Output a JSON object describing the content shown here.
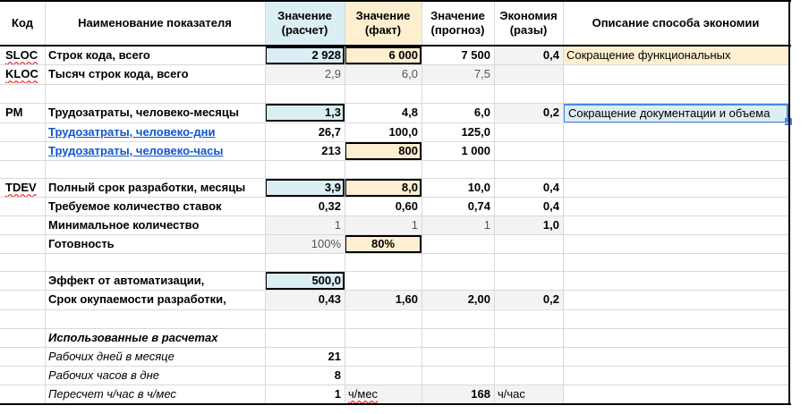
{
  "header": {
    "code": "Код",
    "name": "Наименование показателя",
    "calc": "Значение (расчет)",
    "fact": "Значение (факт)",
    "forecast": "Значение (прогноз)",
    "economy": "Экономия (разы)",
    "desc": "Описание способа экономии"
  },
  "rows": {
    "sloc": {
      "code": "SLOC",
      "name": "Строк кода, всего",
      "calc": "2 928",
      "fact": "6 000",
      "forecast": "7 500",
      "economy": "0,4",
      "desc": "Сокращение функциональных"
    },
    "kloc": {
      "code": "KLOC",
      "name": "Тысяч строк кода, всего",
      "calc": "2,9",
      "fact": "6,0",
      "forecast": "7,5"
    },
    "pm": {
      "code": "PM",
      "name": "Трудозатраты, человеко-месяцы",
      "calc": "1,3",
      "fact": "4,8",
      "forecast": "6,0",
      "economy": "0,2",
      "desc": "Сокращение документации и объема"
    },
    "days": {
      "name": "Трудозатраты, человеко-дни",
      "calc": "26,7",
      "fact": "100,0",
      "forecast": "125,0"
    },
    "hours": {
      "name": "Трудозатраты, человеко-часы",
      "calc": "213",
      "fact": "800",
      "forecast": "1 000"
    },
    "tdev": {
      "code": "TDEV",
      "name": "Полный срок разработки, месяцы",
      "calc": "3,9",
      "fact": "8,0",
      "forecast": "10,0",
      "economy": "0,4"
    },
    "staff": {
      "name": "Требуемое количество ставок",
      "calc": "0,32",
      "fact": "0,60",
      "forecast": "0,74",
      "economy": "0,4"
    },
    "minq": {
      "name": "Минимальное количество",
      "calc": "1",
      "fact": "1",
      "forecast": "1",
      "economy": "1,0"
    },
    "ready": {
      "name": "Готовность",
      "calc": "100%",
      "fact": "80%"
    },
    "effect": {
      "name": "Эффект от автоматизации,",
      "calc": "500,0"
    },
    "payback": {
      "name": "Срок окупаемости разработки,",
      "calc": "0,43",
      "fact": "1,60",
      "forecast": "2,00",
      "economy": "0,2"
    },
    "used": {
      "name": "Использованные в расчетах"
    },
    "wdays": {
      "name": "Рабочих дней в месяце",
      "calc": "21"
    },
    "whours": {
      "name": "Рабочих часов в дне",
      "calc": "8"
    },
    "conv": {
      "name": "Пересчет ч/час в ч/мес",
      "calc": "1",
      "fact": "ч/мес",
      "forecast": "168",
      "economy": "ч/час"
    }
  },
  "colors": {
    "blue": "#dbeef4",
    "tan": "#fdefcf",
    "link": "#1155cc",
    "selection": "#4a86e8"
  }
}
